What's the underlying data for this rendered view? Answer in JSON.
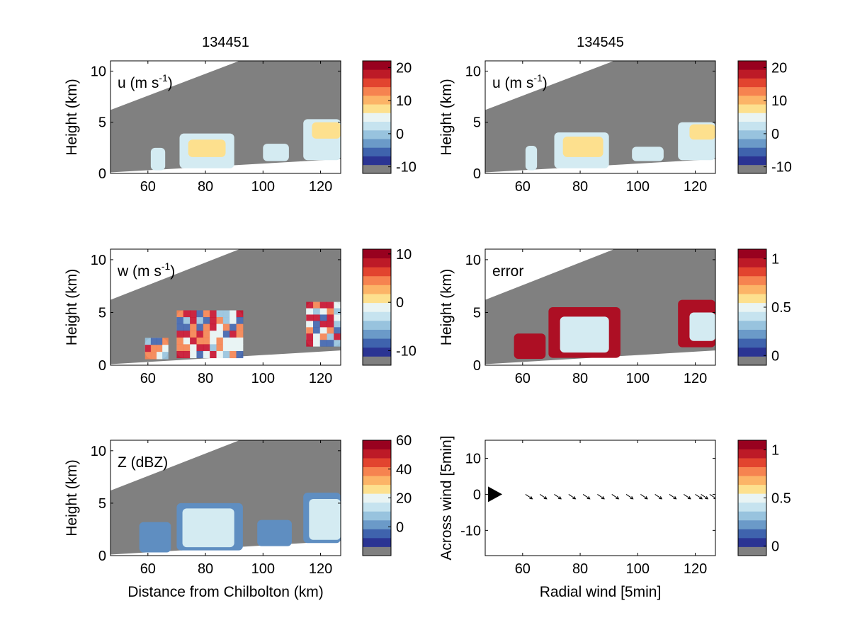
{
  "chart_data": [
    {
      "id": "u1",
      "type": "heatmap",
      "title": "134451",
      "annotation": "u (m s",
      "annotation_sup": "-1",
      "annotation_close": ")",
      "ylabel": "Height (km)",
      "xlabel": "",
      "xlim": [
        47,
        127
      ],
      "ylim": [
        0,
        11
      ],
      "xticks": [
        "60",
        "80",
        "100",
        "120"
      ],
      "yticks": [
        "0",
        "5",
        "10"
      ],
      "colorbar": {
        "range": [
          -12,
          22
        ],
        "ticks": [
          {
            "v": -10,
            "label": "-10"
          },
          {
            "v": 0,
            "label": "0"
          },
          {
            "v": 10,
            "label": "10"
          },
          {
            "v": 20,
            "label": "20"
          }
        ]
      },
      "cells": [
        {
          "x": [
            61,
            66
          ],
          "y": [
            0.3,
            2.5
          ],
          "category": "light-blue"
        },
        {
          "x": [
            71,
            90
          ],
          "y": [
            0.5,
            3.9
          ],
          "category": "light-blue"
        },
        {
          "x": [
            74,
            87
          ],
          "y": [
            1.6,
            3.3
          ],
          "category": "pale-yellow"
        },
        {
          "x": [
            100,
            109
          ],
          "y": [
            1.2,
            2.9
          ],
          "category": "light-blue"
        },
        {
          "x": [
            114,
            127
          ],
          "y": [
            1.3,
            5.3
          ],
          "category": "light-blue"
        },
        {
          "x": [
            117,
            127
          ],
          "y": [
            3.4,
            5.0
          ],
          "category": "pale-yellow"
        }
      ]
    },
    {
      "id": "u2",
      "type": "heatmap",
      "title": "134545",
      "annotation": "u (m s",
      "annotation_sup": "-1",
      "annotation_close": ")",
      "ylabel": "Height (km)",
      "xlabel": "",
      "xlim": [
        47,
        127
      ],
      "ylim": [
        0,
        11
      ],
      "xticks": [
        "60",
        "80",
        "100",
        "120"
      ],
      "yticks": [
        "0",
        "5",
        "10"
      ],
      "colorbar": {
        "range": [
          -12,
          22
        ],
        "ticks": [
          {
            "v": -10,
            "label": "-10"
          },
          {
            "v": 0,
            "label": "0"
          },
          {
            "v": 10,
            "label": "10"
          },
          {
            "v": 20,
            "label": "20"
          }
        ]
      },
      "cells": [
        {
          "x": [
            61,
            65
          ],
          "y": [
            0.3,
            2.7
          ],
          "category": "light-blue"
        },
        {
          "x": [
            71,
            90
          ],
          "y": [
            0.5,
            4.0
          ],
          "category": "light-blue"
        },
        {
          "x": [
            74,
            88
          ],
          "y": [
            1.6,
            3.6
          ],
          "category": "pale-yellow"
        },
        {
          "x": [
            98,
            109
          ],
          "y": [
            1.2,
            2.6
          ],
          "category": "light-blue"
        },
        {
          "x": [
            114,
            127
          ],
          "y": [
            1.3,
            5.0
          ],
          "category": "light-blue"
        },
        {
          "x": [
            118,
            127
          ],
          "y": [
            3.3,
            4.8
          ],
          "category": "pale-yellow"
        }
      ]
    },
    {
      "id": "w",
      "type": "heatmap",
      "title": "",
      "annotation": "w (m s",
      "annotation_sup": "-1",
      "annotation_close": ")",
      "ylabel": "Height (km)",
      "xlabel": "",
      "xlim": [
        47,
        127
      ],
      "ylim": [
        0,
        11
      ],
      "xticks": [
        "60",
        "80",
        "100",
        "120"
      ],
      "yticks": [
        "0",
        "5",
        "10"
      ],
      "colorbar": {
        "range": [
          -13,
          11
        ],
        "ticks": [
          {
            "v": -10,
            "label": "-10"
          },
          {
            "v": 0,
            "label": "0"
          },
          {
            "v": 10,
            "label": "10"
          }
        ]
      },
      "cells": [
        {
          "x": [
            59,
            67
          ],
          "y": [
            0.6,
            2.6
          ],
          "category": "mixed"
        },
        {
          "x": [
            70,
            93
          ],
          "y": [
            0.7,
            5.2
          ],
          "category": "mixed"
        },
        {
          "x": [
            115,
            127
          ],
          "y": [
            1.8,
            6.0
          ],
          "category": "mixed"
        }
      ]
    },
    {
      "id": "err",
      "type": "heatmap",
      "title": "",
      "annotation": "error",
      "annotation_sup": "",
      "annotation_close": "",
      "ylabel": "Height (km)",
      "xlabel": "",
      "xlim": [
        47,
        127
      ],
      "ylim": [
        0,
        11
      ],
      "xticks": [
        "60",
        "80",
        "100",
        "120"
      ],
      "yticks": [
        "0",
        "5",
        "10"
      ],
      "colorbar": {
        "range": [
          -0.1,
          1.1
        ],
        "ticks": [
          {
            "v": 0,
            "label": "0"
          },
          {
            "v": 0.5,
            "label": "0.5"
          },
          {
            "v": 1,
            "label": "1"
          }
        ]
      },
      "cells": [
        {
          "x": [
            57,
            68
          ],
          "y": [
            0.6,
            3.0
          ],
          "category": "dark-red"
        },
        {
          "x": [
            69,
            94
          ],
          "y": [
            0.7,
            5.5
          ],
          "category": "dark-red"
        },
        {
          "x": [
            73,
            90
          ],
          "y": [
            1.2,
            4.6
          ],
          "category": "light-blue"
        },
        {
          "x": [
            114,
            127
          ],
          "y": [
            1.7,
            6.2
          ],
          "category": "dark-red"
        },
        {
          "x": [
            118,
            127
          ],
          "y": [
            2.3,
            5.0
          ],
          "category": "light-blue"
        }
      ]
    },
    {
      "id": "z",
      "type": "heatmap",
      "title": "",
      "annotation": "Z (dBZ)",
      "annotation_sup": "",
      "annotation_close": "",
      "ylabel": "Height (km)",
      "xlabel": "Distance from Chilbolton (km)",
      "xlim": [
        47,
        127
      ],
      "ylim": [
        0,
        11
      ],
      "xticks": [
        "60",
        "80",
        "100",
        "120"
      ],
      "yticks": [
        "0",
        "5",
        "10"
      ],
      "colorbar": {
        "range": [
          -20,
          60
        ],
        "ticks": [
          {
            "v": 0,
            "label": "0"
          },
          {
            "v": 20,
            "label": "20"
          },
          {
            "v": 40,
            "label": "40"
          },
          {
            "v": 60,
            "label": "60"
          }
        ]
      },
      "cells": [
        {
          "x": [
            57,
            68
          ],
          "y": [
            0.3,
            3.2
          ],
          "category": "blue"
        },
        {
          "x": [
            70,
            93
          ],
          "y": [
            0.5,
            5.0
          ],
          "category": "blue"
        },
        {
          "x": [
            72,
            90
          ],
          "y": [
            0.8,
            4.5
          ],
          "category": "light-blue"
        },
        {
          "x": [
            98,
            110
          ],
          "y": [
            0.9,
            3.4
          ],
          "category": "blue"
        },
        {
          "x": [
            114,
            127
          ],
          "y": [
            1.2,
            6.0
          ],
          "category": "blue"
        },
        {
          "x": [
            116,
            127
          ],
          "y": [
            1.5,
            5.4
          ],
          "category": "light-blue"
        }
      ]
    },
    {
      "id": "quiver",
      "type": "scatter",
      "title": "",
      "annotation": "",
      "annotation_sup": "",
      "annotation_close": "",
      "ylabel": "Across wind [5min]",
      "xlabel": "Radial wind [5min]",
      "xlim": [
        47,
        127
      ],
      "ylim": [
        -17,
        15
      ],
      "xticks": [
        "60",
        "80",
        "100",
        "120"
      ],
      "yticks": [
        "-10",
        "0",
        "10"
      ],
      "colorbar": {
        "range": [
          -0.1,
          1.1
        ],
        "ticks": [
          {
            "v": 0,
            "label": "0"
          },
          {
            "v": 0.5,
            "label": "0.5"
          },
          {
            "v": 1,
            "label": "1"
          }
        ]
      },
      "marker": {
        "x": 48,
        "y": 0
      },
      "arrows": [
        {
          "x": 61,
          "y": 0,
          "u": 3,
          "v": -2
        },
        {
          "x": 66,
          "y": 0,
          "u": 3,
          "v": -2
        },
        {
          "x": 71,
          "y": 0,
          "u": 3,
          "v": -2
        },
        {
          "x": 76,
          "y": 0,
          "u": 3,
          "v": -2
        },
        {
          "x": 81,
          "y": 0,
          "u": 3,
          "v": -2
        },
        {
          "x": 86,
          "y": 0,
          "u": 3,
          "v": -2
        },
        {
          "x": 91,
          "y": 0,
          "u": 3,
          "v": -2
        },
        {
          "x": 96,
          "y": 0,
          "u": 3,
          "v": -2
        },
        {
          "x": 101,
          "y": 0,
          "u": 3,
          "v": -2
        },
        {
          "x": 106,
          "y": 0,
          "u": 3,
          "v": -2
        },
        {
          "x": 111,
          "y": 0,
          "u": 3,
          "v": -2
        },
        {
          "x": 116,
          "y": 0,
          "u": 3,
          "v": -2
        },
        {
          "x": 120,
          "y": 0,
          "u": 3,
          "v": -2
        },
        {
          "x": 122,
          "y": 0,
          "u": 3,
          "v": -2
        },
        {
          "x": 125,
          "y": 0,
          "u": 3,
          "v": -2
        }
      ]
    }
  ]
}
